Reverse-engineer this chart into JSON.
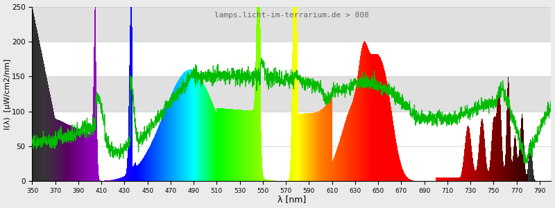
{
  "wl_min": 350,
  "wl_max": 800,
  "ylim": [
    0,
    250
  ],
  "ylabel": "I(λ)  [μW/cm2/nm]",
  "xlabel": "λ [nm]",
  "annotation": "lamps.licht-im-terrarium.de > 808",
  "background_color": "#ebebeb",
  "plot_bg_color": "#ffffff",
  "grid_color": "#d0d0d0",
  "green_line_color": "#00bb00",
  "stripe_color": "#e0e0e0",
  "stripe_ranges": [
    [
      100,
      150
    ],
    [
      200,
      250
    ]
  ]
}
